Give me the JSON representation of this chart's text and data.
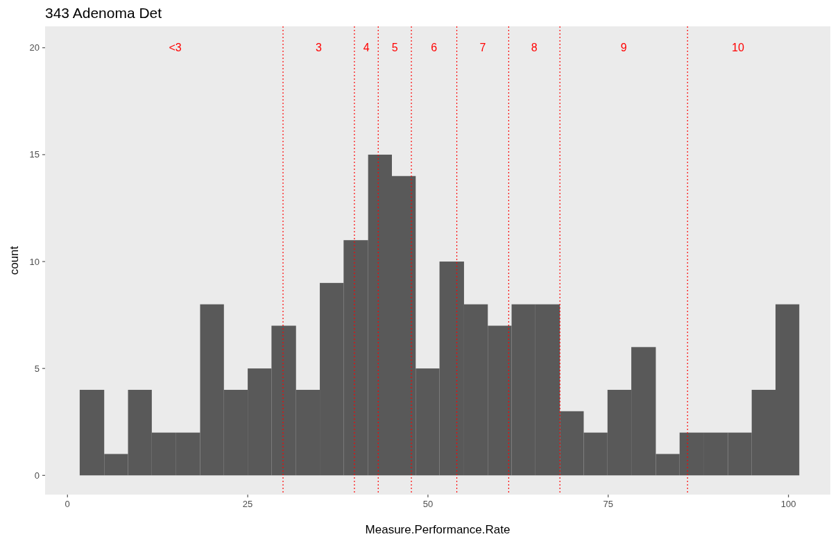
{
  "chart_data": {
    "type": "histogram",
    "title": "343 Adenoma Det",
    "xlabel": "Measure.Performance.Rate",
    "ylabel": "count",
    "bins": [
      1.7,
      5.1,
      8.4,
      11.7,
      15.0,
      18.4,
      21.7,
      25.0,
      28.3,
      31.7,
      35.0,
      38.3,
      41.7,
      45.0,
      48.3,
      51.6,
      55.0,
      58.3,
      61.6,
      64.9,
      68.3,
      71.6,
      74.9,
      78.2,
      81.6,
      84.9,
      88.2,
      91.6,
      94.9,
      98.2,
      101.5
    ],
    "values": [
      4,
      1,
      4,
      2,
      2,
      8,
      4,
      5,
      7,
      4,
      9,
      11,
      15,
      14,
      5,
      10,
      8,
      7,
      8,
      8,
      3,
      2,
      4,
      6,
      1,
      2,
      2,
      2,
      4,
      8
    ],
    "color": "#595959",
    "xlim": [
      -3.1,
      105.8
    ],
    "ylim": [
      -0.9,
      21
    ],
    "xticks": [
      0,
      25,
      50,
      75,
      100
    ],
    "yticks": [
      0,
      5,
      10,
      15,
      20
    ],
    "grid": false,
    "ref_lines": [
      {
        "axis": "x",
        "value": 29.9,
        "color": "#ff0000",
        "line_style": "dotted"
      },
      {
        "axis": "x",
        "value": 39.8,
        "color": "#ff0000",
        "line_style": "dotted"
      },
      {
        "axis": "x",
        "value": 43.1,
        "color": "#ff0000",
        "line_style": "dotted"
      },
      {
        "axis": "x",
        "value": 47.7,
        "color": "#ff0000",
        "line_style": "dotted"
      },
      {
        "axis": "x",
        "value": 54.0,
        "color": "#ff0000",
        "line_style": "dotted"
      },
      {
        "axis": "x",
        "value": 61.2,
        "color": "#ff0000",
        "line_style": "dotted"
      },
      {
        "axis": "x",
        "value": 68.3,
        "color": "#ff0000",
        "line_style": "dotted"
      },
      {
        "axis": "x",
        "value": 86.0,
        "color": "#ff0000",
        "line_style": "dotted"
      }
    ],
    "annotations": [
      "<3",
      "3",
      "4",
      "5",
      "6",
      "7",
      "8",
      "9",
      "10"
    ]
  }
}
